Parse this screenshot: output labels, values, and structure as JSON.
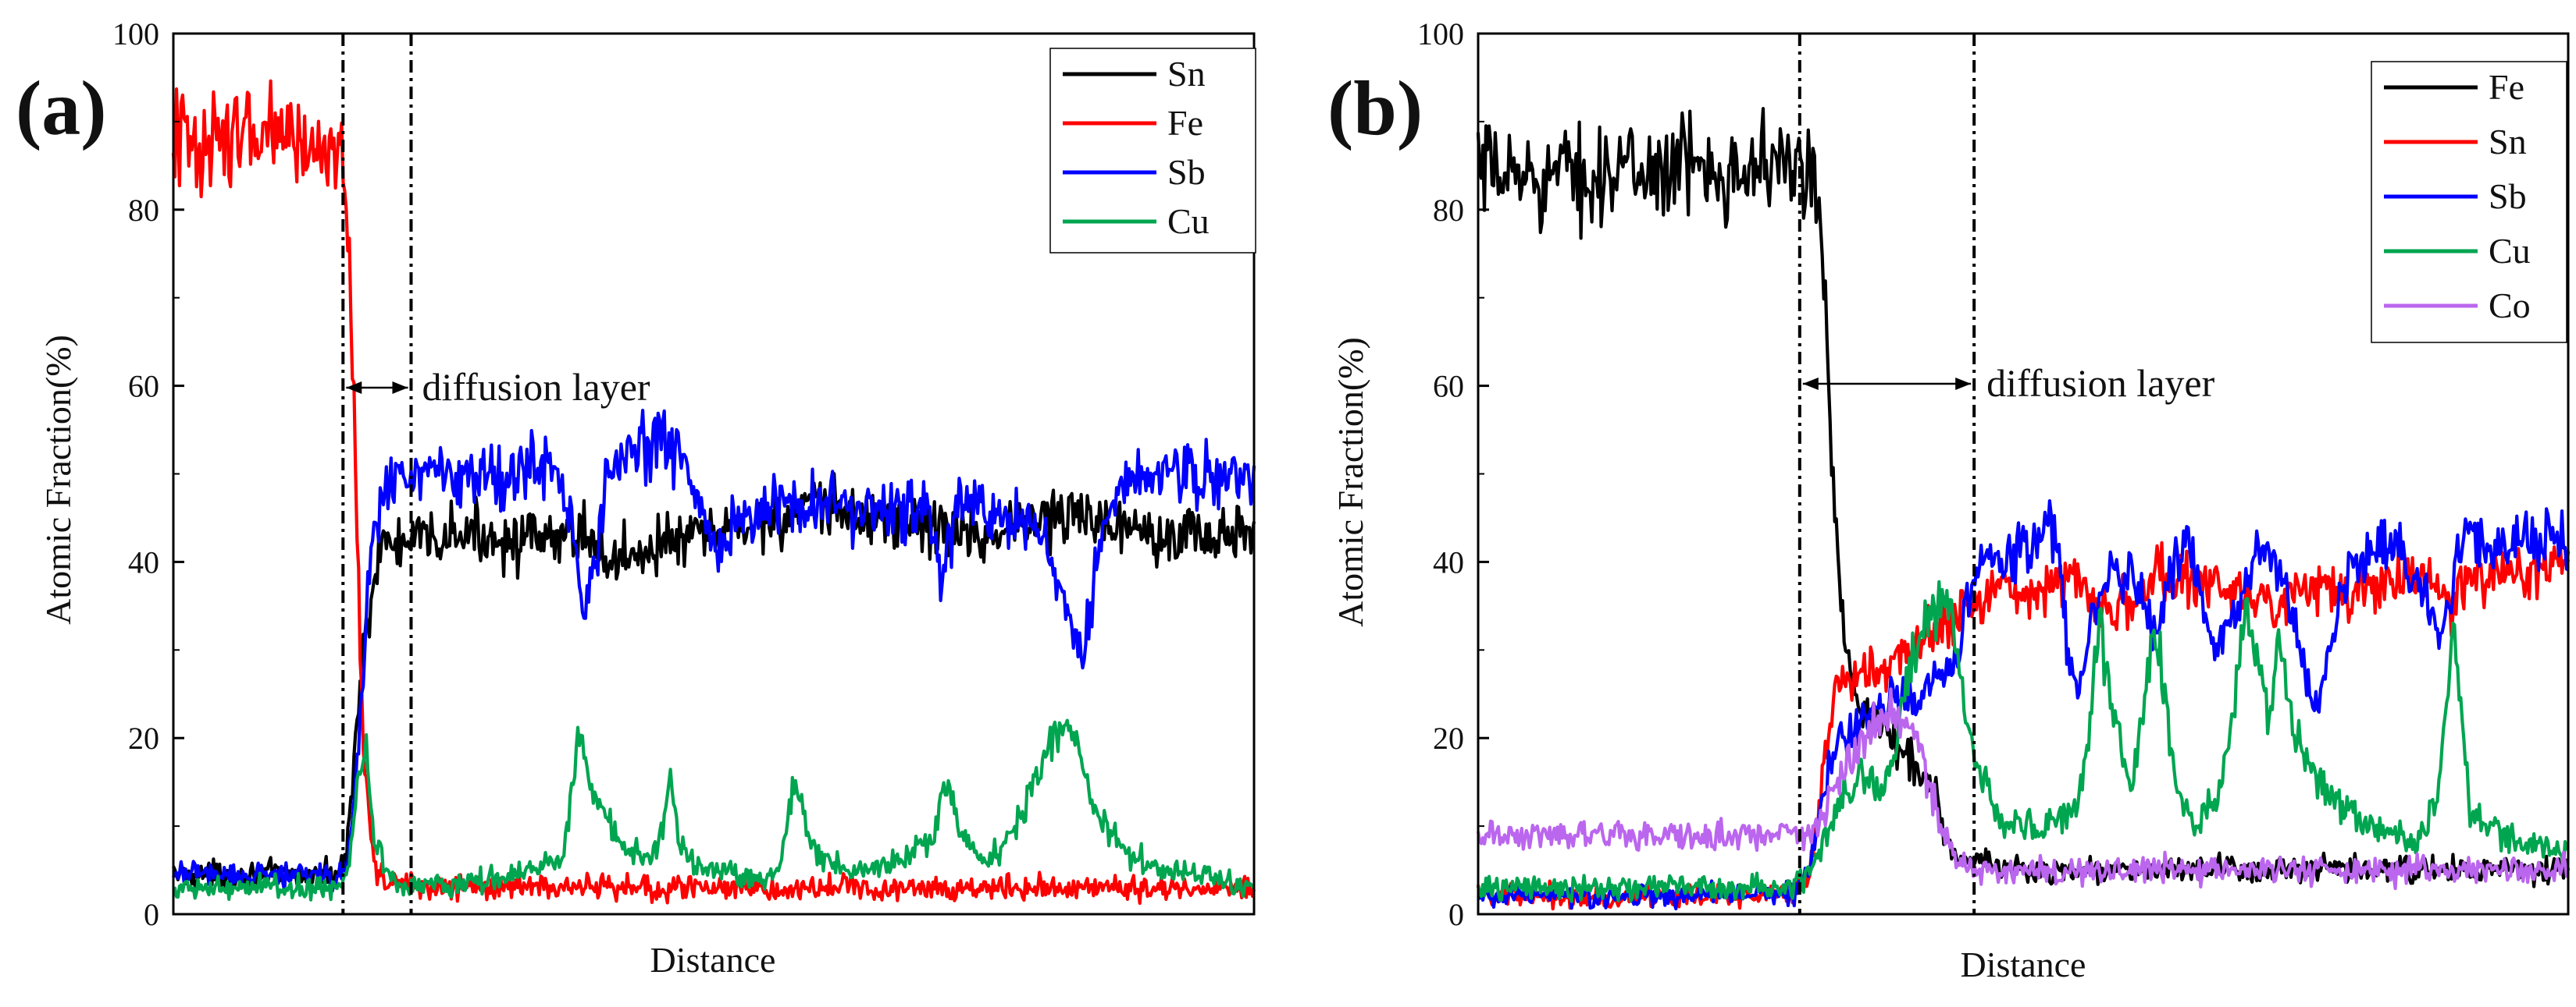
{
  "chart_data": [
    {
      "type": "line",
      "panel_label": "(a)",
      "title": "",
      "xlabel": "Distance",
      "ylabel": "Atomic Fraction(%)",
      "xlim": [
        0,
        100
      ],
      "ylim": [
        0,
        100
      ],
      "yticks": [
        0,
        20,
        40,
        60,
        80,
        100
      ],
      "grid": false,
      "legend_position": "top-right",
      "annotation": "diffusion layer",
      "interface_lines_x": [
        15.7,
        22.0
      ],
      "series": [
        {
          "name": "Sn",
          "color": "#000000",
          "x": [
            0,
            15.0,
            16.0,
            17.5,
            19.0,
            20.0,
            22.0,
            26,
            30,
            35,
            38,
            40,
            45,
            50,
            55,
            60,
            65,
            70,
            75,
            80,
            85,
            90,
            95,
            100
          ],
          "y": [
            4.5,
            4.5,
            6,
            30,
            41,
            42,
            42,
            43,
            43,
            42,
            44,
            40,
            42,
            43,
            45,
            46,
            45,
            44,
            43,
            45,
            45,
            44,
            43,
            43
          ]
        },
        {
          "name": "Fe",
          "color": "#ff0000",
          "x": [
            0,
            5,
            10,
            15.3,
            16.2,
            16.8,
            17.4,
            18.0,
            18.6,
            19.5,
            21,
            24,
            30,
            40,
            50,
            60,
            70,
            80,
            90,
            100
          ],
          "y": [
            88,
            88,
            88,
            87,
            78,
            55,
            25,
            12,
            6,
            4,
            3.5,
            3,
            3,
            3,
            3,
            3,
            3,
            3,
            3,
            3
          ]
        },
        {
          "name": "Sb",
          "color": "#0000ff",
          "x": [
            0,
            15.0,
            16.2,
            17.2,
            18.2,
            19.5,
            22,
            26,
            30,
            35,
            37,
            38,
            39,
            40,
            42,
            45,
            47,
            50,
            55,
            60,
            65,
            70,
            71,
            73,
            80,
            82,
            83,
            84,
            85,
            86,
            88,
            90,
            95,
            100
          ],
          "y": [
            4.5,
            4.5,
            6,
            20,
            40,
            48,
            50,
            50,
            50,
            51,
            44,
            34,
            40,
            49,
            52,
            54,
            52,
            42,
            46,
            47,
            46,
            45,
            39,
            47,
            43,
            38,
            33,
            30,
            36,
            44,
            49,
            50,
            50,
            50
          ]
        },
        {
          "name": "Cu",
          "color": "#00a550",
          "x": [
            0,
            15.0,
            16.2,
            17.0,
            17.8,
            18.5,
            20,
            22,
            26,
            30,
            36,
            37.5,
            39,
            41,
            44,
            45,
            46,
            47,
            50,
            54,
            56,
            57.5,
            59,
            62,
            64,
            67,
            70,
            71.5,
            73,
            75,
            78,
            81,
            82.5,
            83.5,
            85,
            88,
            92,
            96,
            100
          ],
          "y": [
            3,
            3,
            5,
            14,
            19,
            9,
            4,
            3.5,
            3.5,
            4,
            6,
            20,
            14,
            8,
            6,
            8,
            15,
            7,
            5,
            4,
            5,
            15,
            8,
            5,
            5,
            6,
            8,
            15,
            9,
            6,
            10,
            19,
            22,
            20,
            12,
            7,
            5,
            4,
            3.5
          ]
        }
      ]
    },
    {
      "type": "line",
      "panel_label": "(b)",
      "title": "",
      "xlabel": "Distance",
      "ylabel": "Atomic Fraction(%)",
      "xlim": [
        0,
        100
      ],
      "ylim": [
        0,
        100
      ],
      "yticks": [
        0,
        20,
        40,
        60,
        80,
        100
      ],
      "grid": false,
      "legend_position": "top-right",
      "annotation": "diffusion layer",
      "interface_lines_x": [
        29.5,
        45.5
      ],
      "series": [
        {
          "name": "Fe",
          "color": "#000000",
          "x": [
            0,
            10,
            20,
            29,
            30.5,
            31.5,
            32,
            32.5,
            33.5,
            34.5,
            36,
            38,
            40,
            42,
            43,
            44,
            45.5,
            50,
            60,
            70,
            80,
            90,
            100
          ],
          "y": [
            84,
            84,
            85,
            85,
            83,
            78,
            65,
            50,
            33,
            26,
            22,
            20,
            17,
            14,
            8,
            6,
            6,
            5,
            5,
            5,
            5,
            5,
            5
          ]
        },
        {
          "name": "Sn",
          "color": "#ff0000",
          "x": [
            0,
            20,
            29,
            30.5,
            32,
            33,
            35,
            38,
            40,
            42,
            44,
            46,
            48,
            50,
            55,
            57,
            58,
            60,
            62,
            65,
            70,
            72,
            73,
            75,
            80,
            85,
            88,
            89,
            90,
            95,
            100
          ],
          "y": [
            2,
            2,
            2.5,
            5,
            20,
            26,
            27,
            28,
            30,
            33,
            34,
            36,
            37,
            37,
            38,
            36,
            34,
            36,
            38,
            38,
            37,
            36,
            34,
            37,
            36,
            38,
            37,
            34,
            37,
            39,
            40
          ]
        },
        {
          "name": "Sb",
          "color": "#0000ff",
          "x": [
            0,
            20,
            29,
            30.5,
            32,
            34,
            36,
            38,
            40,
            42,
            44,
            45.5,
            47,
            50,
            53,
            54,
            55,
            56,
            58,
            60,
            62,
            64,
            65,
            66,
            68,
            70,
            72,
            74,
            76,
            77,
            78,
            80,
            84,
            85,
            87,
            88,
            89,
            90,
            95,
            100
          ],
          "y": [
            2,
            2,
            2.5,
            6,
            16,
            21,
            23,
            25,
            24,
            26,
            30,
            39,
            40,
            42,
            44,
            30,
            24,
            32,
            40,
            38,
            32,
            40,
            43,
            38,
            30,
            37,
            41,
            38,
            26,
            24,
            30,
            40,
            42,
            40,
            36,
            30,
            34,
            42,
            42,
            42
          ]
        },
        {
          "name": "Cu",
          "color": "#00a550",
          "x": [
            0,
            20,
            29,
            31,
            33,
            35,
            37,
            38,
            40,
            42,
            43,
            45,
            48,
            52,
            55,
            56,
            57,
            58,
            60,
            61,
            62,
            63,
            64,
            66,
            68,
            69.5,
            70.5,
            71.5,
            72.5,
            73.5,
            75,
            78,
            82,
            86,
            88,
            89.5,
            91,
            95,
            100
          ],
          "y": [
            3,
            3,
            3,
            6,
            12,
            16,
            14,
            18,
            30,
            35,
            37,
            20,
            10,
            10,
            12,
            20,
            33,
            25,
            14,
            23,
            33,
            25,
            14,
            10,
            14,
            25,
            35,
            30,
            22,
            30,
            20,
            13,
            10,
            8,
            13,
            33,
            12,
            8,
            7
          ]
        },
        {
          "name": "Co",
          "color": "#bb66ee",
          "x": [
            0,
            10,
            20,
            28,
            30,
            32,
            34,
            36,
            38,
            40,
            42,
            44,
            46,
            50,
            60,
            70,
            80,
            90,
            100
          ],
          "y": [
            9,
            9,
            9,
            9,
            9,
            12,
            17,
            21,
            23,
            20,
            12,
            6,
            5,
            5,
            5,
            5,
            5,
            5,
            5
          ]
        }
      ]
    }
  ]
}
